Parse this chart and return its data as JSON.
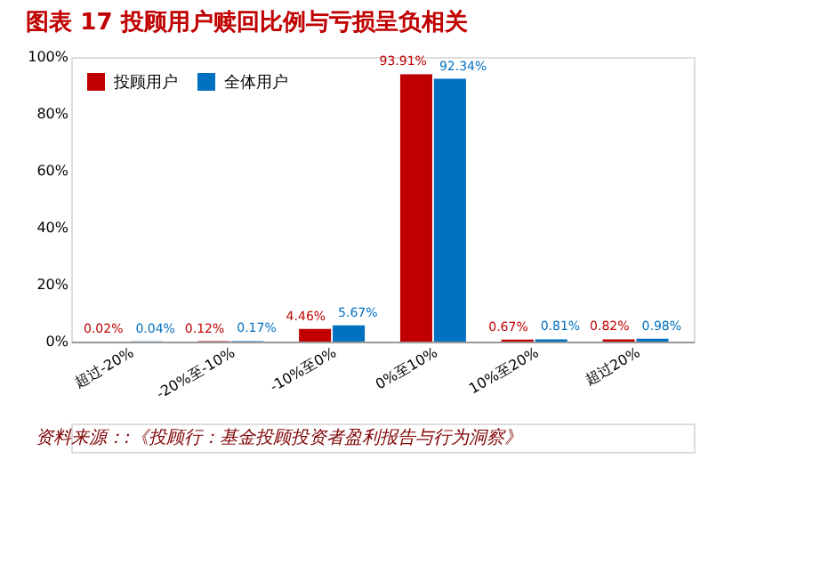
{
  "chart_data": {
    "type": "bar",
    "title": "图表 17  投顾用户赎回比例与亏损呈负相关",
    "categories": [
      "超过-20%",
      "-20%至-10%",
      "-10%至0%",
      "0%至10%",
      "10%至20%",
      "超过20%"
    ],
    "series": [
      {
        "name": "投顾用户",
        "color": "#c00000",
        "values": [
          0.02,
          0.12,
          4.46,
          93.91,
          0.67,
          0.82
        ],
        "value_labels": [
          "0.02%",
          "0.12%",
          "4.46%",
          "93.91%",
          "0.67%",
          "0.82%"
        ]
      },
      {
        "name": "全体用户",
        "color": "#0070c0",
        "values": [
          0.04,
          0.17,
          5.67,
          92.34,
          0.81,
          0.98
        ],
        "value_labels": [
          "0.04%",
          "0.17%",
          "5.67%",
          "92.34%",
          "0.81%",
          "0.98%"
        ]
      }
    ],
    "ylim": [
      0,
      100
    ],
    "yticks": [
      {
        "value": 0,
        "label": "0%"
      },
      {
        "value": 20,
        "label": "20%"
      },
      {
        "value": 40,
        "label": "40%"
      },
      {
        "value": 60,
        "label": "60%"
      },
      {
        "value": 80,
        "label": "80%"
      },
      {
        "value": 100,
        "label": "100%"
      }
    ],
    "grid": false,
    "legend": "top left",
    "annotations": [
      "资料来源：:《投顾行：基金投顾投资者盈利报告与行为洞察》"
    ]
  }
}
